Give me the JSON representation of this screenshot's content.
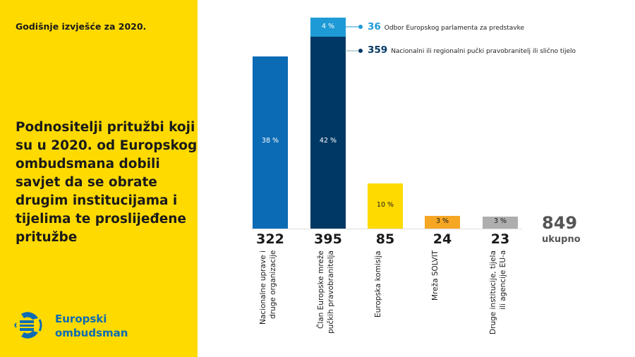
{
  "header": {
    "report": "Godišnje izvješće za 2020."
  },
  "title": "Podnositelji pritužbi koji su u 2020. od Europskog ombudsmana dobili savjet da se obrate drugim institucijama i tijelima te proslijeđene pritužbe",
  "logo": {
    "line1": "Europski",
    "line2": "ombudsman",
    "icon": "european-ombudsman-logo"
  },
  "colors": {
    "yellow": "#FFDA00",
    "blue": "#0B6BB5",
    "darkblue": "#003865",
    "lightblue": "#1E9AD6",
    "orange": "#F5A623",
    "grey": "#AEAEAE"
  },
  "chart_data": {
    "type": "bar",
    "categories": [
      "Nacionalne uprave i druge organizacije",
      "Član Europske mreže pučkih pravobranitelja",
      "Europska komisija",
      "Mreža SOLVIT",
      "Druge institucije, tijela ili agencije EU-a"
    ],
    "values": [
      322,
      395,
      85,
      24,
      23
    ],
    "percent_labels": [
      "38 %",
      "42 %",
      "10 %",
      "3 %",
      "3 %"
    ],
    "value_labels": [
      "322",
      "395",
      "85",
      "24",
      "23"
    ],
    "stack": {
      "category": 1,
      "segments": [
        {
          "name": "Nacionalni ili regionalni pučki pravobranitelj ili slično tijelo",
          "value": 359,
          "label": "359"
        },
        {
          "name": "Odbor Europskog parlamenta za predstavke",
          "value": 36,
          "label": "36",
          "pct": "4 %"
        }
      ]
    },
    "total": {
      "value": "849",
      "label": "ukupno"
    },
    "ylim": [
      0,
      400
    ]
  }
}
